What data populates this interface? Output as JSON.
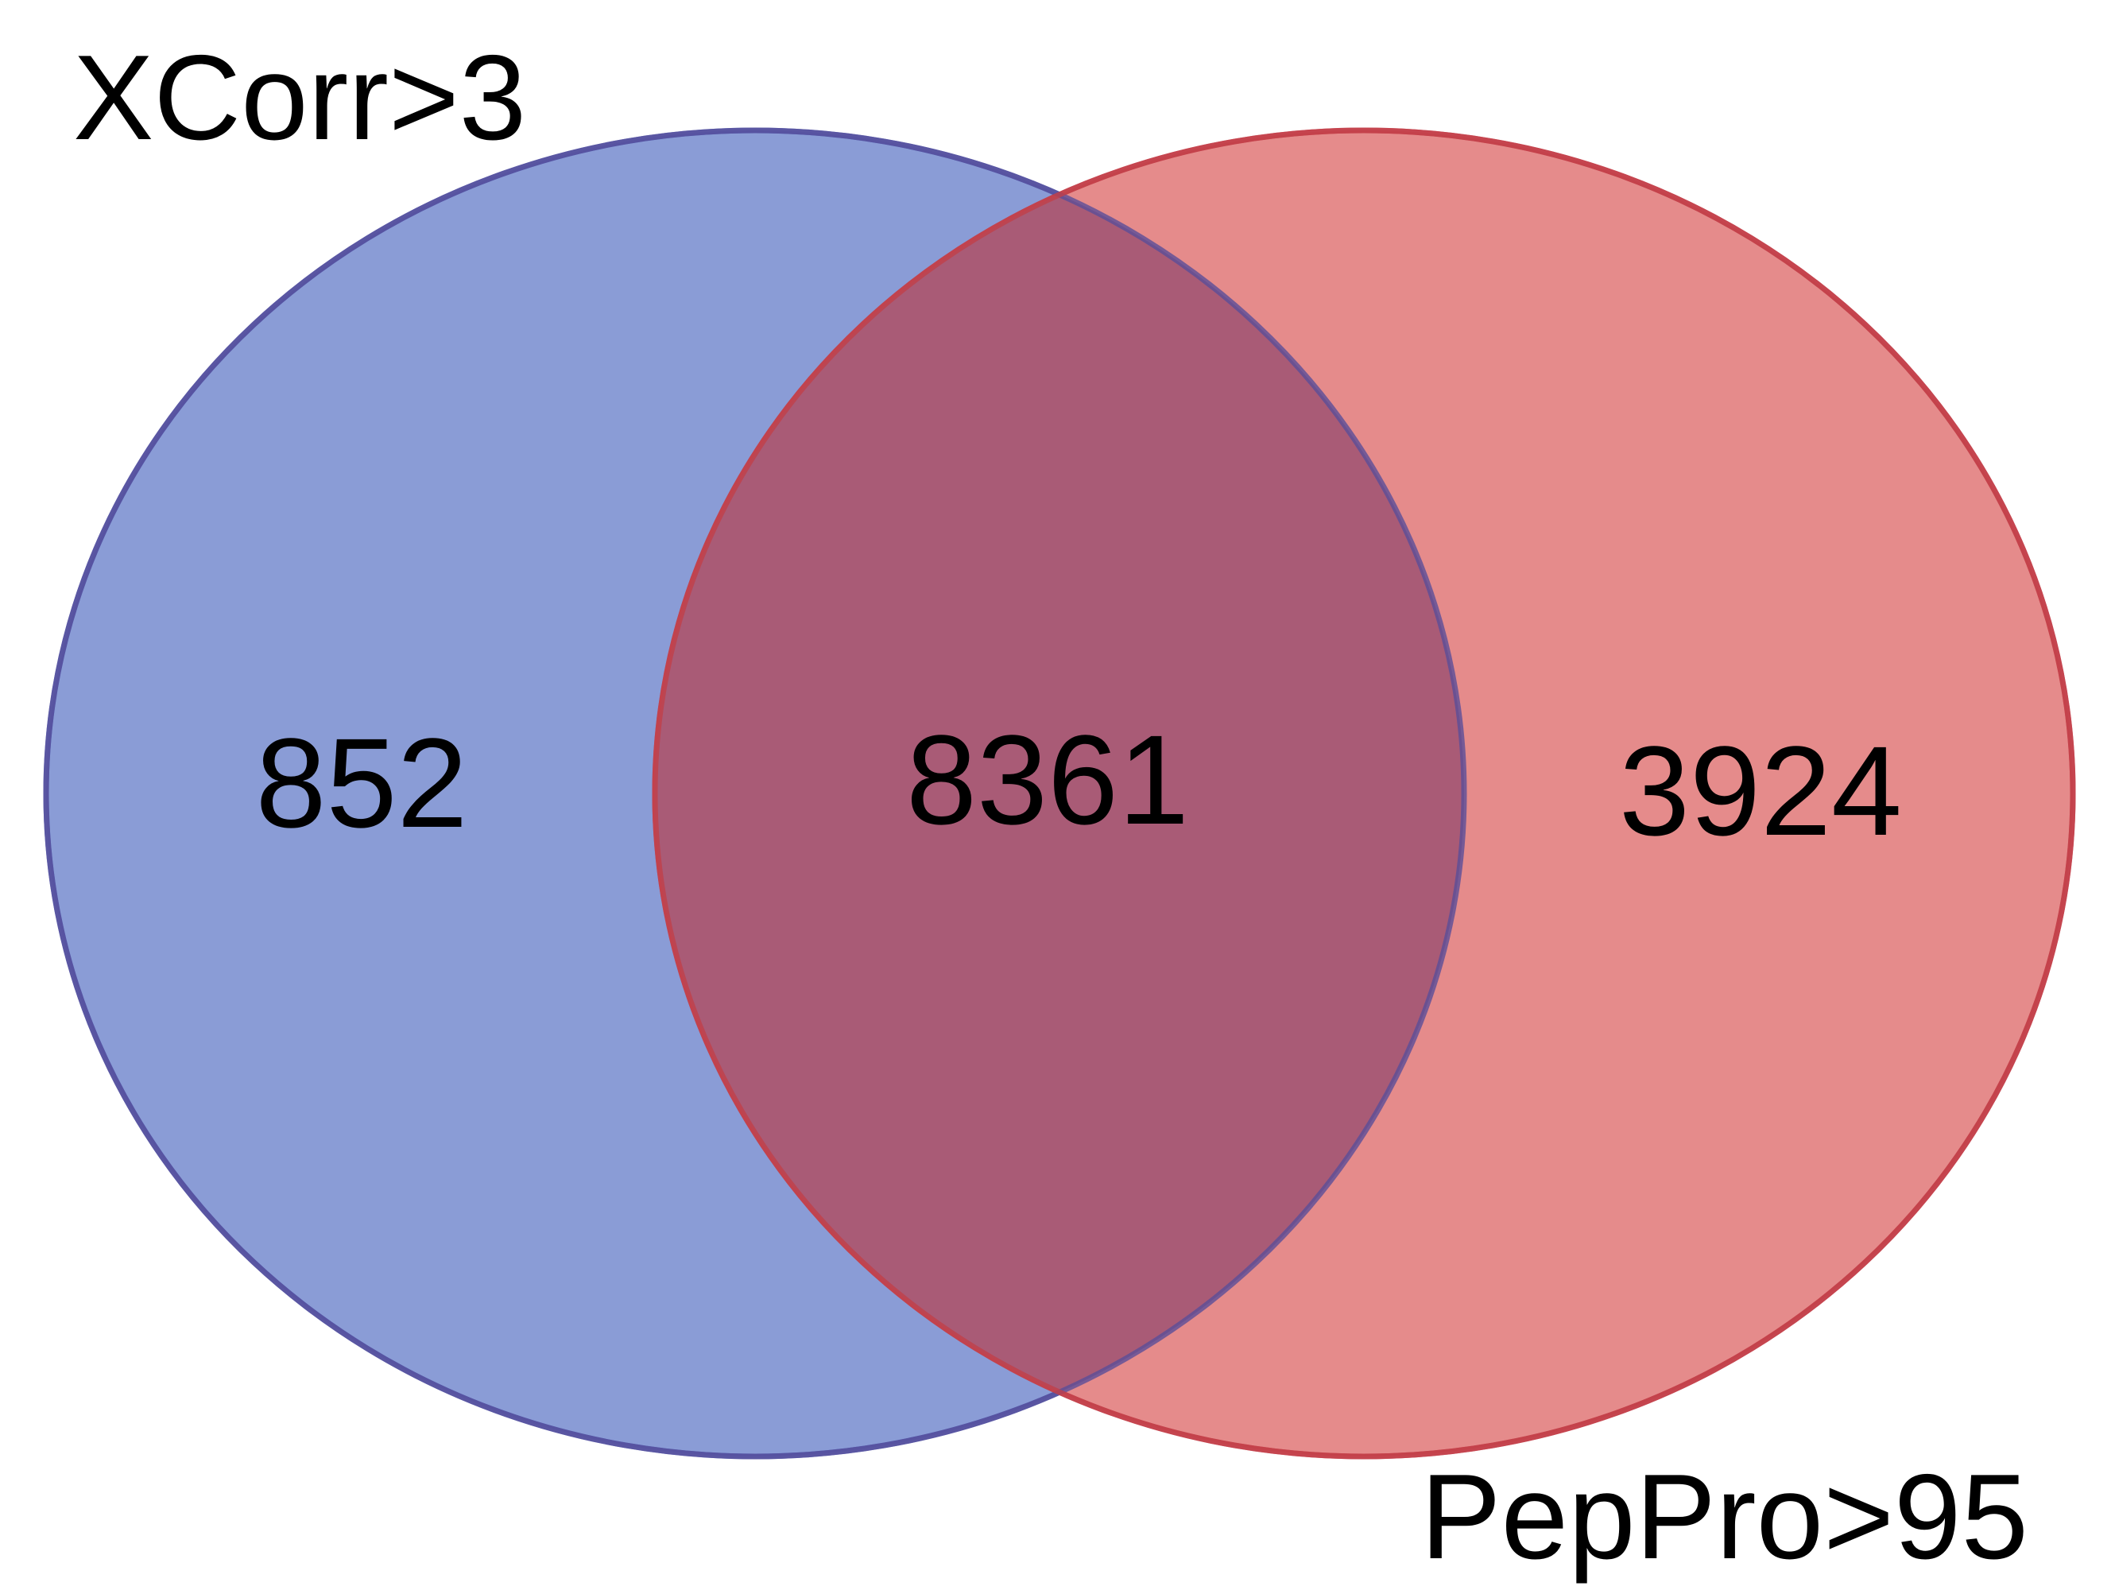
{
  "diagram": {
    "type": "venn",
    "sets": [
      {
        "label": "XCorr>3",
        "color": "#4060C0",
        "fill": "#8A9CD6",
        "only_count": "852"
      },
      {
        "label": "PepPro>95",
        "color": "#D04048",
        "fill": "#E58B8B",
        "only_count": "3924"
      }
    ],
    "intersection": {
      "count": "8361",
      "fill": "#A95B76"
    }
  }
}
